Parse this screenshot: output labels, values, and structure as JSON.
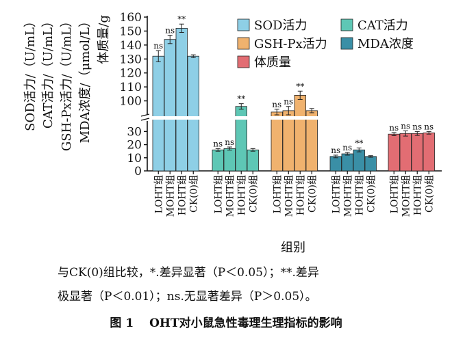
{
  "chart_data": {
    "type": "bar",
    "categories": [
      "LOHT组",
      "MOHT组",
      "HOHT组",
      "CK(0)组"
    ],
    "series": [
      {
        "name": "SOD活力",
        "color": "#8ecfe6",
        "values": [
          132,
          144,
          152,
          132
        ],
        "errors": [
          4,
          3,
          3,
          1
        ],
        "labels": [
          "ns",
          "ns",
          "**",
          ""
        ]
      },
      {
        "name": "CAT活力",
        "color": "#5ec7b5",
        "values": [
          16,
          17,
          96,
          16
        ],
        "errors": [
          1,
          1.2,
          2,
          1
        ],
        "labels": [
          "ns",
          "ns",
          "**",
          ""
        ]
      },
      {
        "name": "GSH-Px活力",
        "color": "#f0b26e",
        "values": [
          92,
          93,
          104,
          93
        ],
        "errors": [
          2,
          3,
          3,
          1.5
        ],
        "labels": [
          "ns",
          "ns",
          "**",
          ""
        ]
      },
      {
        "name": "MDA浓度",
        "color": "#3a8fa6",
        "values": [
          11,
          13,
          16,
          11
        ],
        "errors": [
          1,
          1,
          1.5,
          0.6
        ],
        "labels": [
          "ns",
          "ns",
          "**",
          ""
        ]
      },
      {
        "name": "体质量",
        "color": "#e26d73",
        "values": [
          28,
          28.5,
          28.5,
          29
        ],
        "errors": [
          1.2,
          2,
          1.5,
          1
        ],
        "labels": [
          "ns",
          "ns",
          "ns",
          "ns"
        ]
      }
    ],
    "y_axis": {
      "broken": true,
      "lower_range": [
        0,
        38
      ],
      "upper_range": [
        90,
        160
      ],
      "ticks": [
        "0",
        "10",
        "20",
        "30",
        "100",
        "110",
        "120",
        "130",
        "140",
        "150",
        "160"
      ],
      "labels": [
        "SOD活力/（U/mL）",
        "CAT活力/（U/mL）",
        "GSH-Px活力/（U/mL）",
        "MDA浓度/（μmol/L）",
        "体质量/g"
      ]
    },
    "xlabel": "组别",
    "grid": false,
    "legend_position": "top-right"
  },
  "notes": {
    "line1": "与CK(0)组比较，*.差异显著（P＜0.05）；**.差异",
    "line2": "极显著（P＜0.01）；ns.无显著差异（P＞0.05）。"
  },
  "figure_title": "图 1　 OHT对小鼠急性毒理生理指标的影响"
}
